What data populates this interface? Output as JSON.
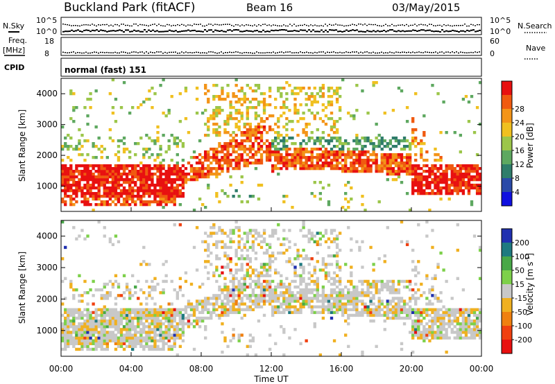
{
  "header": {
    "site": "Buckland Park (fitACF)",
    "beam": "Beam 16",
    "date": "03/May/2015"
  },
  "strips": {
    "nsky_label": "N.Sky",
    "nsky_ticks": [
      "10^5",
      "10^0"
    ],
    "nsearch_label": "N.Search",
    "nsearch_ticks": [
      "10^5",
      "10^0"
    ],
    "freq_label_1": "Freq.",
    "freq_label_2": "[MHz]",
    "freq_ticks": [
      "18",
      "8"
    ],
    "nave_label": "Nave",
    "nave_ticks": [
      "60",
      "0"
    ],
    "cpid_label": "CPID",
    "cpid_value": "normal (fast) 151"
  },
  "chart_data": [
    {
      "type": "heatmap",
      "name": "power",
      "ylabel": "Slant Range [km]",
      "yticks": [
        "1000",
        "2000",
        "3000",
        "4000"
      ],
      "ylim": [
        180,
        4500
      ],
      "colorbar_label": "Power [dB]",
      "colorbar_ticks": [
        "4",
        "8",
        "12",
        "16",
        "20",
        "24",
        "28"
      ],
      "colors": [
        "#1010e0",
        "#2a4aa8",
        "#2f7d6a",
        "#5ea860",
        "#9cc64a",
        "#f0c020",
        "#f39418",
        "#f05a10",
        "#e81010"
      ],
      "echo_bands": [
        {
          "from_h": 0,
          "to_h": 7,
          "min_km": 650,
          "max_km": 1700,
          "level": "high"
        },
        {
          "from_h": 7,
          "to_h": 12,
          "min_km": 1100,
          "max_km": 4300,
          "level": "medium"
        },
        {
          "from_h": 12,
          "to_h": 20,
          "min_km": 1400,
          "max_km": 2500,
          "level": "medium-high"
        },
        {
          "from_h": 20,
          "to_h": 24,
          "min_km": 700,
          "max_km": 1700,
          "level": "high"
        }
      ]
    },
    {
      "type": "heatmap",
      "name": "velocity",
      "xlabel": "Time UT",
      "xticks": [
        "00:00",
        "04:00",
        "08:00",
        "12:00",
        "16:00",
        "20:00",
        "00:00"
      ],
      "ylabel": "Slant Range [km]",
      "yticks": [
        "1000",
        "2000",
        "3000",
        "4000"
      ],
      "ylim": [
        180,
        4500
      ],
      "colorbar_label": "Velocity [m s",
      "colorbar_label_sup": "-1",
      "colorbar_ticks": [
        "200",
        "100",
        "50",
        "15",
        "-15",
        "-50",
        "-100",
        "-200"
      ],
      "colors": [
        "#2030b0",
        "#1e7a80",
        "#48a848",
        "#7dd04a",
        "#c8c8c8",
        "#f0b020",
        "#f08010",
        "#f04010",
        "#e81010"
      ]
    }
  ]
}
